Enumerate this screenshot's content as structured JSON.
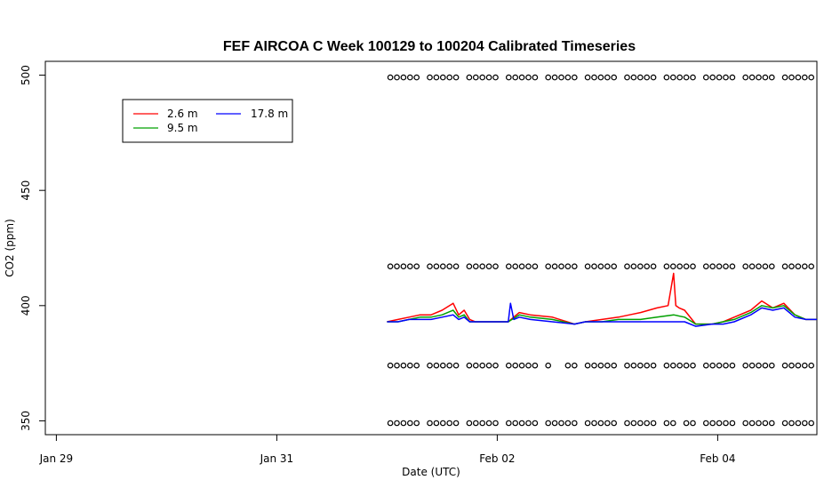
{
  "chart_data": {
    "type": "line",
    "title": "FEF AIRCOA C  Week 100129 to 100204  Calibrated Timeseries",
    "xlabel": "Date (UTC)",
    "ylabel": "CO2 (ppm)",
    "x_unit": "days",
    "xlim": [
      -0.1,
      6.9
    ],
    "ylim": [
      344,
      506
    ],
    "x_ticks": [
      {
        "value": 0,
        "label": "Jan 29"
      },
      {
        "value": 2,
        "label": "Jan 31"
      },
      {
        "value": 4,
        "label": "Feb 02"
      },
      {
        "value": 6,
        "label": "Feb 04"
      }
    ],
    "y_ticks": [
      {
        "value": 350,
        "label": "350"
      },
      {
        "value": 400,
        "label": "400"
      },
      {
        "value": 450,
        "label": "450"
      },
      {
        "value": 500,
        "label": "500"
      }
    ],
    "legend": {
      "position": "top-left",
      "entries": [
        {
          "label": "2.6 m",
          "color": "#ff0000"
        },
        {
          "label": "9.5 m",
          "color": "#00a000"
        },
        {
          "label": "17.8 m",
          "color": "#0000ff"
        }
      ]
    },
    "series": [
      {
        "name": "2.6 m",
        "color": "#ff0000",
        "x": [
          3.0,
          3.1,
          3.2,
          3.3,
          3.4,
          3.5,
          3.6,
          3.65,
          3.7,
          3.75,
          3.8,
          4.0,
          4.1,
          4.2,
          4.3,
          4.5,
          4.7,
          4.8,
          4.95,
          5.1,
          5.2,
          5.3,
          5.45,
          5.55,
          5.6,
          5.62,
          5.65,
          5.7,
          5.8,
          5.95,
          6.05,
          6.15,
          6.3,
          6.4,
          6.5,
          6.6,
          6.7,
          6.8,
          6.9
        ],
        "y": [
          393,
          394,
          395,
          396,
          396,
          398,
          401,
          396,
          398,
          394,
          393,
          393,
          393,
          397,
          396,
          395,
          392,
          393,
          394,
          395,
          396,
          397,
          399,
          400,
          414,
          400,
          399,
          398,
          392,
          392,
          393,
          395,
          398,
          402,
          399,
          401,
          396,
          394,
          394
        ]
      },
      {
        "name": "9.5 m",
        "color": "#00a000",
        "x": [
          3.0,
          3.1,
          3.2,
          3.3,
          3.4,
          3.5,
          3.6,
          3.65,
          3.7,
          3.75,
          3.8,
          4.0,
          4.1,
          4.2,
          4.3,
          4.5,
          4.7,
          4.8,
          4.95,
          5.1,
          5.2,
          5.3,
          5.45,
          5.6,
          5.7,
          5.8,
          5.95,
          6.05,
          6.15,
          6.3,
          6.4,
          6.5,
          6.6,
          6.7,
          6.8,
          6.9
        ],
        "y": [
          393,
          393,
          394,
          395,
          395,
          396,
          398,
          395,
          396,
          393,
          393,
          393,
          393,
          396,
          395,
          394,
          392,
          393,
          393,
          394,
          394,
          394,
          395,
          396,
          395,
          392,
          392,
          393,
          394,
          397,
          400,
          399,
          400,
          396,
          394,
          394
        ]
      },
      {
        "name": "17.8 m",
        "color": "#0000ff",
        "x": [
          3.0,
          3.1,
          3.2,
          3.3,
          3.4,
          3.5,
          3.6,
          3.65,
          3.7,
          3.75,
          3.8,
          3.9,
          4.0,
          4.1,
          4.12,
          4.15,
          4.2,
          4.3,
          4.5,
          4.7,
          4.8,
          4.95,
          5.1,
          5.2,
          5.3,
          5.45,
          5.6,
          5.7,
          5.8,
          5.95,
          6.05,
          6.15,
          6.3,
          6.4,
          6.5,
          6.6,
          6.7,
          6.8,
          6.9
        ],
        "y": [
          393,
          393,
          394,
          394,
          394,
          395,
          396,
          394,
          395,
          393,
          393,
          393,
          393,
          393,
          401,
          394,
          395,
          394,
          393,
          392,
          393,
          393,
          393,
          393,
          393,
          393,
          393,
          393,
          391,
          392,
          392,
          393,
          396,
          399,
          398,
          399,
          395,
          394,
          394
        ]
      }
    ],
    "marker_rows": {
      "marker": "open-circle",
      "x_start": 3.03,
      "x_end": 6.9,
      "y_values": [
        499,
        417,
        374,
        349
      ],
      "gaps": [
        {
          "y": 374,
          "from": 4.5,
          "to": 4.6
        },
        {
          "y": 349,
          "from": 5.6,
          "to": 5.7
        }
      ]
    }
  }
}
